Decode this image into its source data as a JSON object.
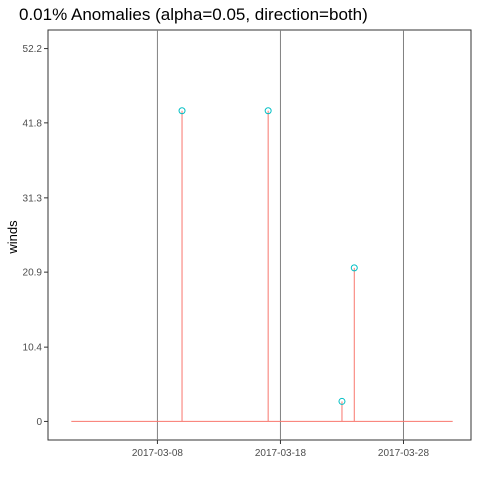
{
  "chart_data": {
    "type": "scatter",
    "title": "0.01% Anomalies (alpha=0.05, direction=both)",
    "xlabel": "",
    "ylabel": "winds",
    "x_ticks": [
      "2017-03-08",
      "2017-03-18",
      "2017-03-28"
    ],
    "y_ticks": [
      "0",
      "10.4",
      "20.9",
      "31.3",
      "41.8",
      "52.2"
    ],
    "ylim": [
      -2.6,
      54.8
    ],
    "xlim": [
      "2016-02-28",
      "2017-04-02"
    ],
    "grid": false,
    "series": [
      {
        "points": [
          {
            "x": "2017-03-10",
            "y": 43.5
          },
          {
            "x": "2017-03-17",
            "y": 43.5
          },
          {
            "x": "2017-03-23",
            "y": 2.8
          },
          {
            "x": "2017-03-24",
            "y": 21.5
          }
        ]
      }
    ],
    "baseline": {
      "y": 0,
      "x_start": "2016-02-29",
      "x_end": "2017-04-01"
    },
    "colors": {
      "stem": "#f8766d",
      "marker": "#00bfc4",
      "vline": "#808080",
      "axis_text": "#4d4d4d"
    }
  }
}
